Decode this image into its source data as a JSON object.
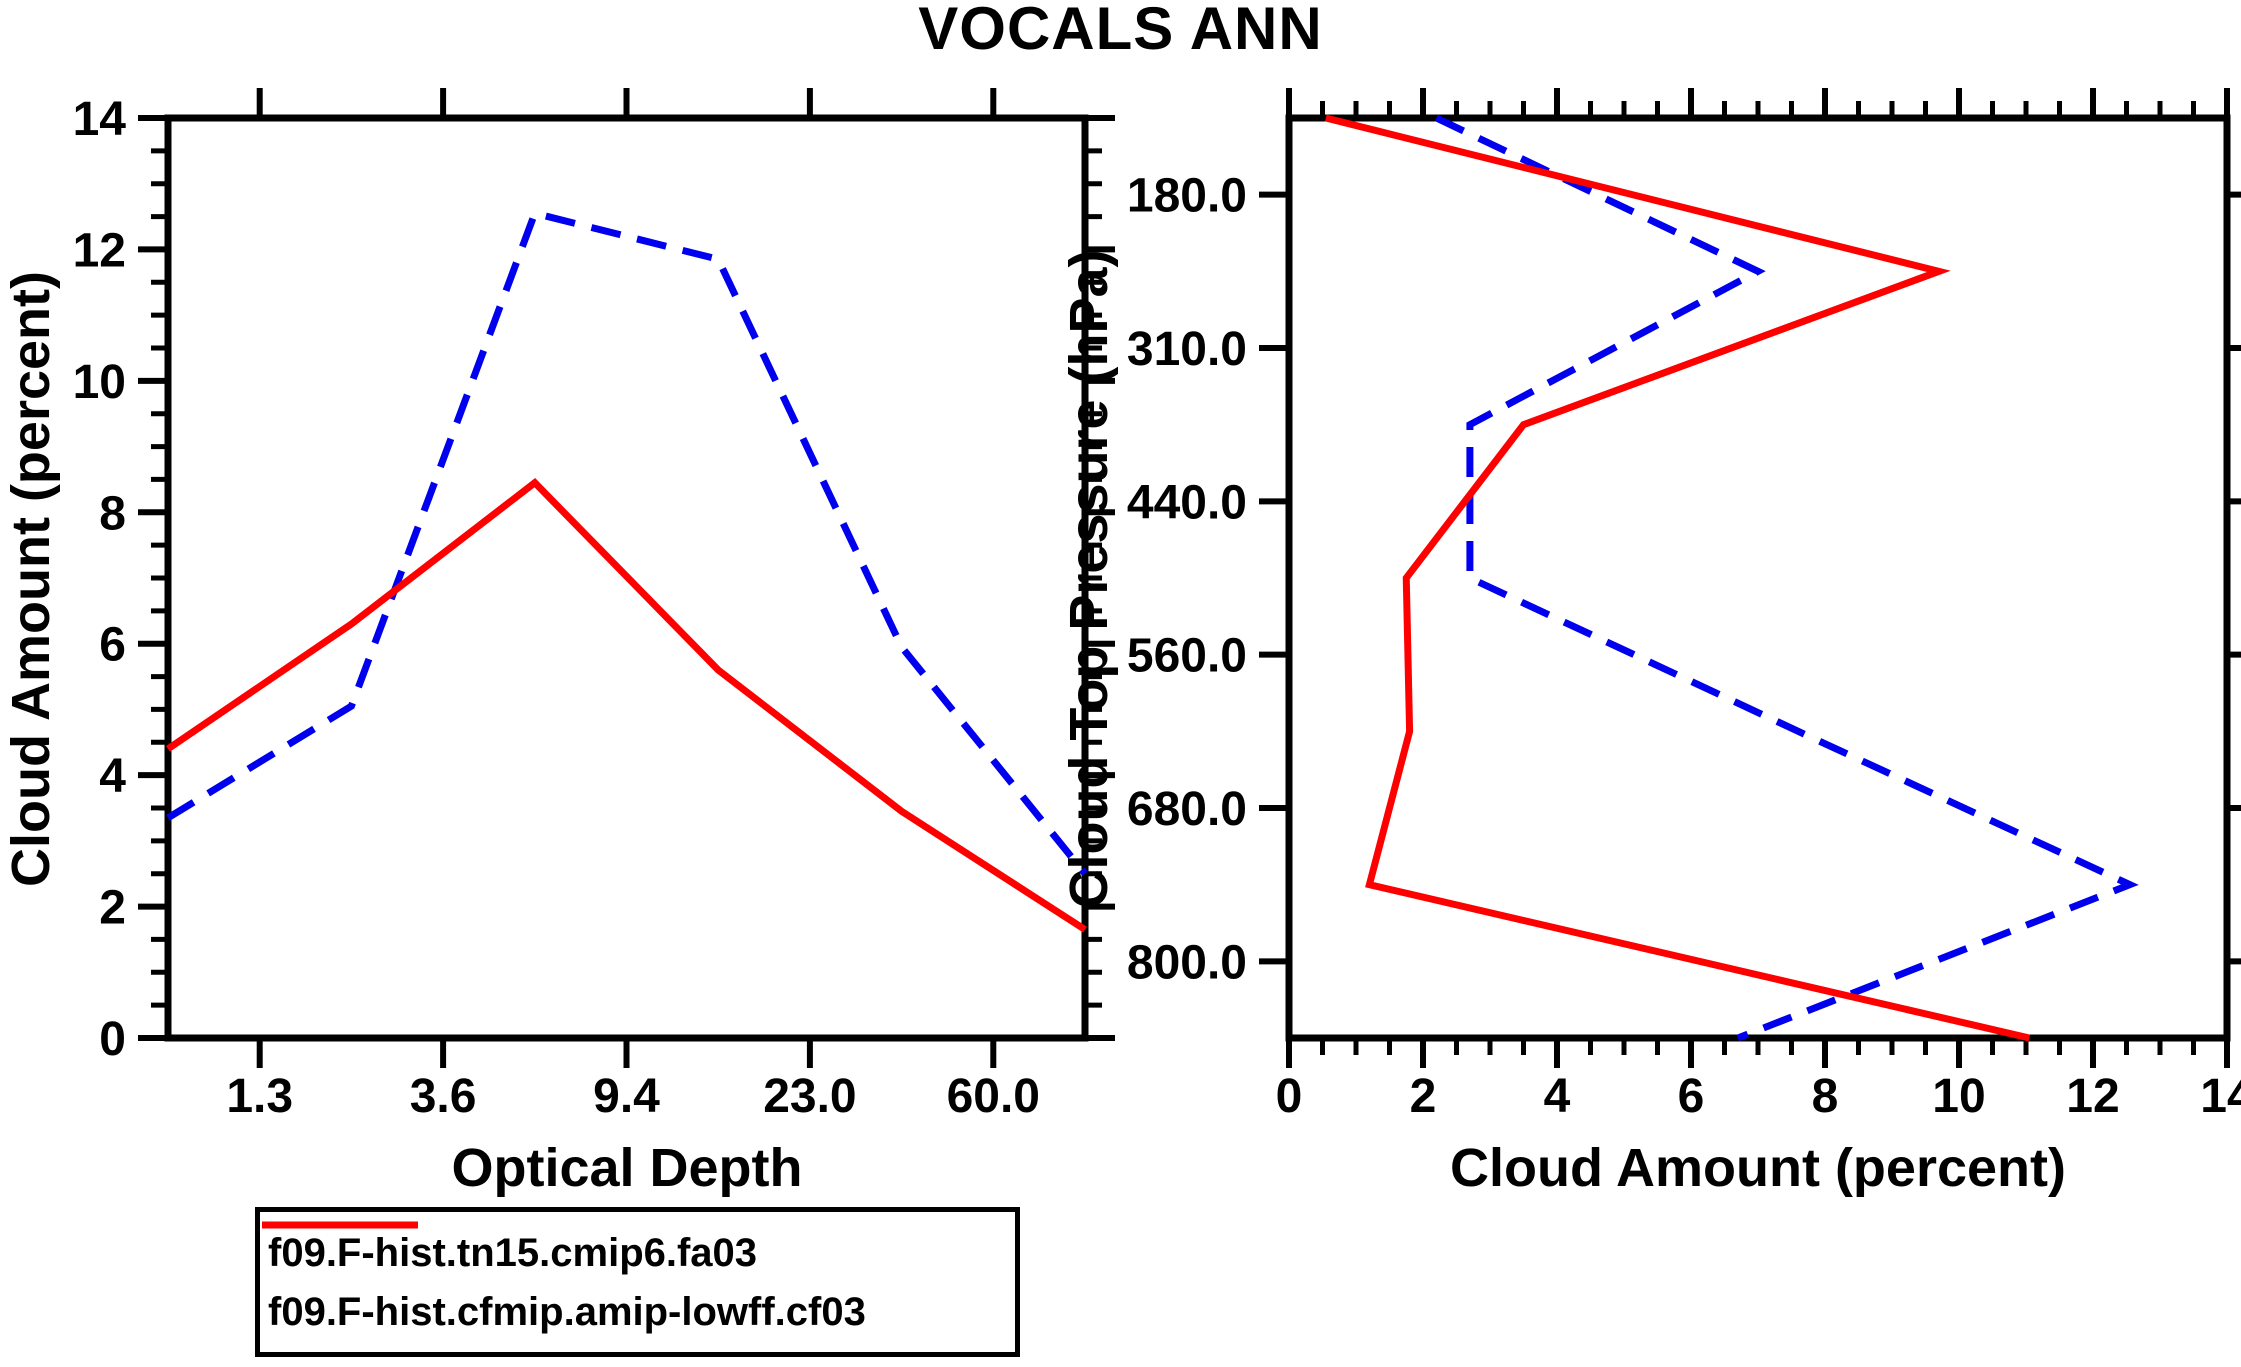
{
  "title": "VOCALS ANN",
  "colors": {
    "series_blue": "#0000ee",
    "series_red": "#ff0000",
    "axis": "#000000",
    "background": "#ffffff"
  },
  "legend": {
    "items": [
      {
        "label": "f09.F-hist.tn15.cmip6.fa03",
        "color": "#0000ee",
        "line_style": "dashed"
      },
      {
        "label": "f09.F-hist.cfmip.amip-lowff.cf03",
        "color": "#ff0000",
        "line_style": "solid"
      }
    ]
  },
  "chart_data": [
    {
      "type": "line",
      "panel": "left",
      "title": "VOCALS ANN",
      "xlabel": "Optical Depth",
      "ylabel": "Cloud Amount (percent)",
      "x_axis_note": "categorical ISCCP optical-depth bins; 6 data points at bin midpoints; ticks mark bin boundaries",
      "x_tick_labels": [
        "1.3",
        "3.6",
        "9.4",
        "23.0",
        "60.0"
      ],
      "ylim": [
        0,
        14
      ],
      "y_major_step": 2,
      "y_minor_step": 0.5,
      "y_tick_labels": [
        "0",
        "2",
        "4",
        "6",
        "8",
        "10",
        "12",
        "14"
      ],
      "grid": false,
      "series": [
        {
          "name": "f09.F-hist.tn15.cmip6.fa03",
          "color": "#0000ee",
          "line_style": "dashed",
          "values": [
            3.35,
            5.05,
            12.55,
            11.85,
            5.95,
            2.5
          ]
        },
        {
          "name": "f09.F-hist.cfmip.amip-lowff.cf03",
          "color": "#ff0000",
          "line_style": "solid",
          "values": [
            4.4,
            6.3,
            8.45,
            5.6,
            3.45,
            1.65
          ]
        }
      ]
    },
    {
      "type": "line",
      "panel": "right",
      "xlabel": "Cloud Amount (percent)",
      "ylabel": "Cloud Top Pressure (hPa)",
      "y_axis_note": "categorical ISCCP cloud-top-pressure bins; 7 data points at bin midpoints (top to bottom); ticks mark bin boundaries",
      "y_tick_labels": [
        "180.0",
        "310.0",
        "440.0",
        "560.0",
        "680.0",
        "800.0"
      ],
      "xlim": [
        0,
        14
      ],
      "x_major_step": 2,
      "x_minor_step": 0.5,
      "x_tick_labels": [
        "0",
        "2",
        "4",
        "6",
        "8",
        "10",
        "12",
        "14"
      ],
      "grid": false,
      "series": [
        {
          "name": "f09.F-hist.tn15.cmip6.fa03",
          "color": "#0000ee",
          "line_style": "dashed",
          "values": [
            2.2,
            7.0,
            2.7,
            2.7,
            7.6,
            12.55,
            6.7
          ]
        },
        {
          "name": "f09.F-hist.cfmip.amip-lowff.cf03",
          "color": "#ff0000",
          "line_style": "solid",
          "values": [
            0.55,
            9.7,
            3.5,
            1.75,
            1.8,
            1.2,
            11.05
          ]
        }
      ]
    }
  ]
}
